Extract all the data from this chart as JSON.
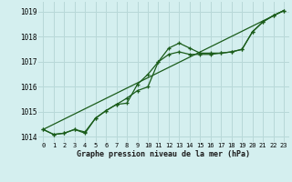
{
  "x": [
    0,
    1,
    2,
    3,
    4,
    5,
    6,
    7,
    8,
    9,
    10,
    11,
    12,
    13,
    14,
    15,
    16,
    17,
    18,
    19,
    20,
    21,
    22,
    23
  ],
  "line1": [
    1014.3,
    1014.1,
    1014.15,
    1014.3,
    1014.2,
    1014.75,
    1015.05,
    1015.3,
    1015.55,
    1015.85,
    1016.0,
    1017.0,
    1017.3,
    1017.4,
    1017.3,
    1017.3,
    1017.3,
    1017.35,
    1017.4,
    1017.5,
    1018.2,
    1018.6,
    1018.85,
    1019.05
  ],
  "line2": [
    1014.3,
    1014.1,
    1014.15,
    1014.3,
    1014.15,
    1014.75,
    1015.05,
    1015.3,
    1015.35,
    1016.1,
    1016.5,
    1017.0,
    1017.55,
    1017.75,
    1017.55,
    1017.35,
    1017.35,
    1017.35,
    1017.4,
    1017.5,
    1018.2,
    1018.6,
    1018.85,
    1019.05
  ],
  "trend_x": [
    0,
    23
  ],
  "trend_y": [
    1014.3,
    1019.05
  ],
  "background_color": "#d4efef",
  "grid_color": "#b8d8d8",
  "line_color": "#1a5c1a",
  "marker_color": "#1a5c1a",
  "xlabel": "Graphe pression niveau de la mer (hPa)",
  "ylabel_ticks": [
    1014,
    1015,
    1016,
    1017,
    1018,
    1019
  ],
  "xlim": [
    -0.5,
    23.5
  ],
  "ylim": [
    1013.8,
    1019.4
  ]
}
